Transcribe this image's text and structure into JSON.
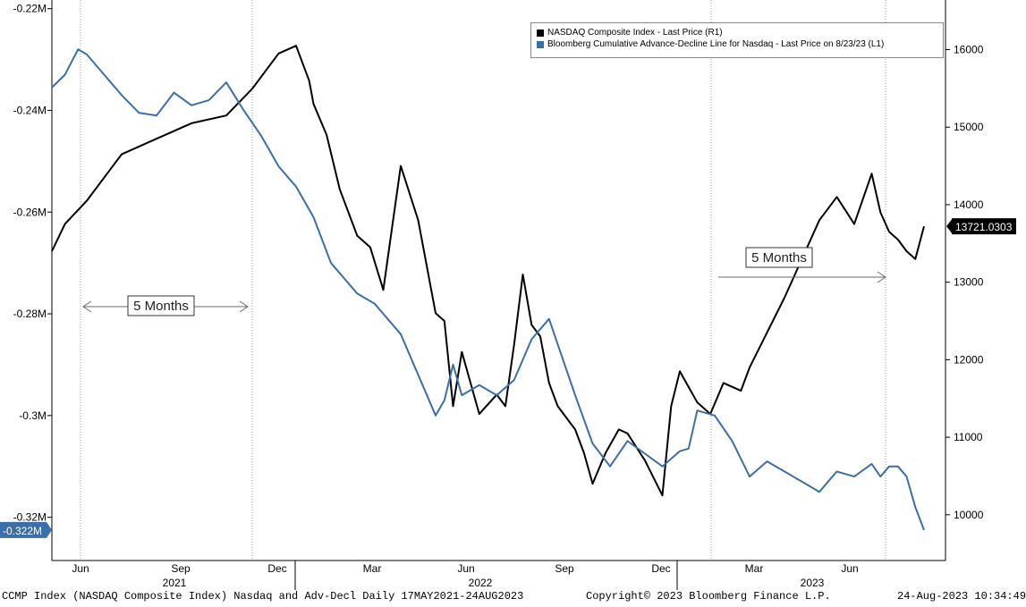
{
  "chart_data": {
    "type": "line",
    "title": "CCMP Index (NASDAQ Composite Index) Nasdaq and Adv-Decl  Daily 17MAY2021-24AUG2023",
    "x_axis": {
      "month_labels": [
        "Jun",
        "Sep",
        "Dec",
        "Mar",
        "Jun",
        "Sep",
        "Dec",
        "Mar",
        "Jun"
      ],
      "year_labels": [
        "2021",
        "2022",
        "2023"
      ]
    },
    "left_axis": {
      "ylim": [
        -0.3285,
        -0.2183
      ],
      "ticks": [
        -0.22,
        -0.24,
        -0.26,
        -0.28,
        -0.3,
        -0.32
      ],
      "tick_labels": [
        "-0.22M",
        "-0.24M",
        "-0.26M",
        "-0.28M",
        "-0.3M",
        "-0.32M"
      ],
      "last_value_label": "-0.322M"
    },
    "right_axis": {
      "ylim": [
        9410,
        16640
      ],
      "ticks": [
        10000,
        11000,
        12000,
        13000,
        14000,
        15000,
        16000
      ],
      "tick_labels": [
        "10000",
        "11000",
        "12000",
        "13000",
        "14000",
        "15000",
        "16000"
      ],
      "last_value_label": "13721.0303"
    },
    "series": [
      {
        "name": "NASDAQ Composite Index - Last Price (R1)",
        "axis": "right",
        "color": "#000000",
        "t": [
          0,
          0.015,
          0.04,
          0.08,
          0.12,
          0.16,
          0.2,
          0.23,
          0.26,
          0.28,
          0.295,
          0.3,
          0.315,
          0.33,
          0.35,
          0.365,
          0.38,
          0.4,
          0.42,
          0.44,
          0.45,
          0.46,
          0.47,
          0.49,
          0.51,
          0.52,
          0.53,
          0.54,
          0.55,
          0.56,
          0.57,
          0.58,
          0.6,
          0.61,
          0.62,
          0.635,
          0.65,
          0.66,
          0.68,
          0.7,
          0.71,
          0.72,
          0.74,
          0.755,
          0.77,
          0.79,
          0.8,
          0.82,
          0.84,
          0.86,
          0.88,
          0.9,
          0.92,
          0.94,
          0.95,
          0.96,
          0.97,
          0.98,
          0.99,
          1.0
        ],
        "values": [
          13400,
          13750,
          14050,
          14650,
          14850,
          15050,
          15150,
          15500,
          15950,
          16050,
          15600,
          15300,
          14900,
          14200,
          13600,
          13450,
          12900,
          14500,
          13800,
          12600,
          12500,
          11400,
          12100,
          11300,
          11550,
          11400,
          12200,
          13100,
          12450,
          12300,
          11700,
          11400,
          11100,
          10800,
          10400,
          10800,
          11100,
          11050,
          10700,
          10250,
          11400,
          11850,
          11450,
          11300,
          11700,
          11600,
          11900,
          12350,
          12800,
          13300,
          13800,
          14100,
          13750,
          14400,
          13900,
          13650,
          13550,
          13400,
          13300,
          13721
        ]
      },
      {
        "name": "Bloomberg Cumulative Advance-Decline Line for Nasdaq - Last Price on 8/23/23 (L1)",
        "axis": "left",
        "color": "#3c6ea8",
        "t": [
          0,
          0.015,
          0.03,
          0.04,
          0.06,
          0.08,
          0.1,
          0.12,
          0.14,
          0.16,
          0.18,
          0.2,
          0.22,
          0.24,
          0.26,
          0.28,
          0.3,
          0.32,
          0.35,
          0.37,
          0.4,
          0.42,
          0.44,
          0.45,
          0.46,
          0.47,
          0.49,
          0.51,
          0.53,
          0.55,
          0.57,
          0.58,
          0.6,
          0.62,
          0.64,
          0.66,
          0.68,
          0.7,
          0.72,
          0.73,
          0.74,
          0.76,
          0.78,
          0.8,
          0.82,
          0.84,
          0.86,
          0.88,
          0.9,
          0.92,
          0.94,
          0.95,
          0.96,
          0.97,
          0.98,
          0.99,
          1.0
        ],
        "values": [
          -0.2355,
          -0.233,
          -0.228,
          -0.229,
          -0.233,
          -0.237,
          -0.2405,
          -0.241,
          -0.2365,
          -0.239,
          -0.238,
          -0.2345,
          -0.24,
          -0.245,
          -0.251,
          -0.255,
          -0.261,
          -0.27,
          -0.276,
          -0.278,
          -0.284,
          -0.292,
          -0.3,
          -0.297,
          -0.29,
          -0.296,
          -0.294,
          -0.296,
          -0.293,
          -0.285,
          -0.281,
          -0.286,
          -0.296,
          -0.3055,
          -0.31,
          -0.305,
          -0.3075,
          -0.31,
          -0.307,
          -0.3065,
          -0.299,
          -0.3,
          -0.305,
          -0.312,
          -0.309,
          -0.311,
          -0.313,
          -0.315,
          -0.311,
          -0.312,
          -0.3095,
          -0.312,
          -0.31,
          -0.31,
          -0.312,
          -0.318,
          -0.3225
        ]
      }
    ],
    "annotations": [
      {
        "label": "5 Months"
      },
      {
        "label": "5 Months"
      }
    ]
  },
  "footer": {
    "left": "CCMP Index (NASDAQ Composite Index) Nasdaq and Adv-Decl  Daily 17MAY2021-24AUG2023",
    "center": "Copyright© 2023 Bloomberg Finance L.P.",
    "right": "24-Aug-2023 10:34:49"
  }
}
